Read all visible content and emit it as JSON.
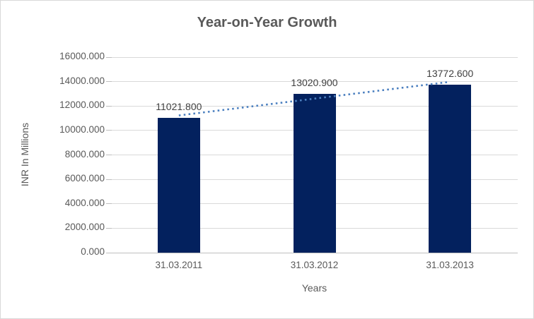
{
  "chart_data": {
    "type": "bar",
    "title": "Year-on-Year Growth",
    "categories": [
      "31.03.2011",
      "31.03.2012",
      "31.03.2013"
    ],
    "values": [
      11021.8,
      13020.9,
      13772.6
    ],
    "value_labels": [
      "11021.800",
      "13020.900",
      "13772.600"
    ],
    "xlabel": "Years",
    "ylabel": "INR In Millions",
    "ylim": [
      0,
      16000
    ],
    "y_ticks": [
      0,
      2000,
      4000,
      6000,
      8000,
      10000,
      12000,
      14000,
      16000
    ],
    "y_tick_labels": [
      "0.000",
      "2000.000",
      "4000.000",
      "6000.000",
      "8000.000",
      "10000.000",
      "12000.000",
      "14000.000",
      "16000.000"
    ],
    "grid": true,
    "legend": false,
    "bar_color": "#03215e",
    "trendline": {
      "type": "linear",
      "style": "dotted",
      "color": "#4c80c0"
    }
  },
  "colors": {
    "background": "#ffffff",
    "border": "#d9d9d9",
    "title_text": "#595959",
    "axis_text": "#595959",
    "data_label_text": "#404040",
    "gridline": "#d9d9d9",
    "axis_line": "#bfbfbf"
  }
}
